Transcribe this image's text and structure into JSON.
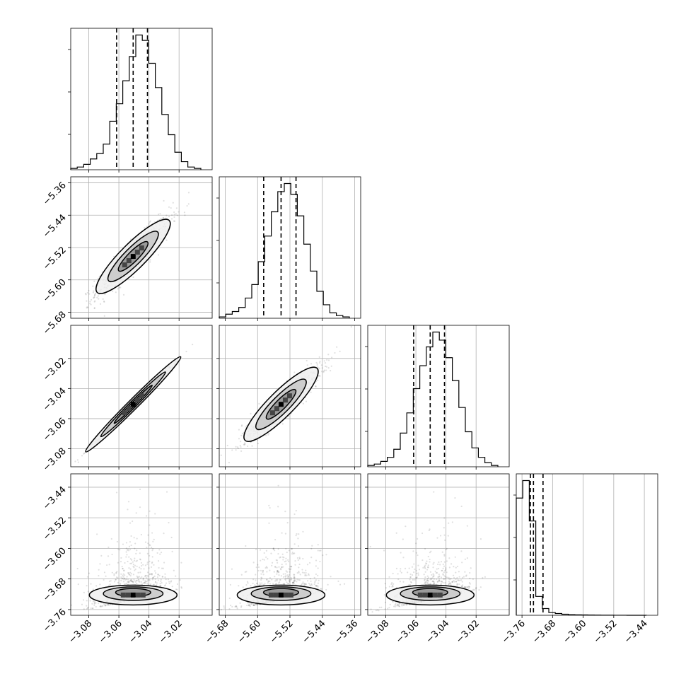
{
  "chart_data": {
    "type": "corner",
    "n_params": 4,
    "params": [
      {
        "range": [
          -3.092,
          -2.998
        ],
        "ticks": [
          "-3.08",
          "-3.06",
          "-3.04",
          "-3.02"
        ],
        "tick_values": [
          -3.08,
          -3.06,
          -3.04,
          -3.02
        ]
      },
      {
        "range": [
          -5.695,
          -5.345
        ],
        "ticks": [
          "-5.68",
          "-5.60",
          "-5.52",
          "-5.44",
          "-5.36"
        ],
        "tick_values": [
          -5.68,
          -5.6,
          -5.52,
          -5.44,
          -5.36
        ]
      },
      {
        "range": [
          -3.092,
          -2.998
        ],
        "ticks": [
          "-3.08",
          "-3.06",
          "-3.04",
          "-3.02"
        ],
        "tick_values": [
          -3.08,
          -3.06,
          -3.04,
          -3.02
        ]
      },
      {
        "range": [
          -3.775,
          -3.405
        ],
        "ticks": [
          "-3.76",
          "-3.68",
          "-3.60",
          "-3.52",
          "-3.44"
        ],
        "tick_values": [
          -3.76,
          -3.68,
          -3.6,
          -3.52,
          -3.44
        ]
      }
    ],
    "quantiles": [
      [
        -3.0615,
        -3.0505,
        -3.041
      ],
      [
        -5.585,
        -5.542,
        -5.505
      ],
      [
        -3.0615,
        -3.0505,
        -3.041
      ],
      [
        -3.738,
        -3.73,
        -3.705
      ]
    ],
    "histograms": [
      [
        1,
        2,
        4,
        8,
        12,
        19,
        36,
        49,
        66,
        84,
        100,
        96,
        79,
        61,
        41,
        26,
        13,
        6,
        2,
        1
      ],
      [
        1,
        3,
        5,
        8,
        15,
        25,
        42,
        61,
        79,
        94,
        100,
        92,
        76,
        55,
        35,
        20,
        10,
        4,
        2,
        1
      ],
      [
        1,
        2,
        4,
        7,
        13,
        25,
        40,
        58,
        75,
        89,
        100,
        94,
        81,
        64,
        44,
        26,
        14,
        7,
        3,
        1
      ],
      [
        87,
        100,
        70,
        14,
        5,
        2,
        1.3,
        0.8,
        0.5,
        0.35,
        0.25,
        0.18,
        0.12,
        0.08,
        0.05,
        0.03,
        0.02,
        0.01,
        0.01,
        0.01
      ]
    ],
    "grid": true,
    "marginal_style": "step-histogram with dashed quantile lines",
    "joint_style": "grayscale 2D histogram with contours and scatter points"
  }
}
